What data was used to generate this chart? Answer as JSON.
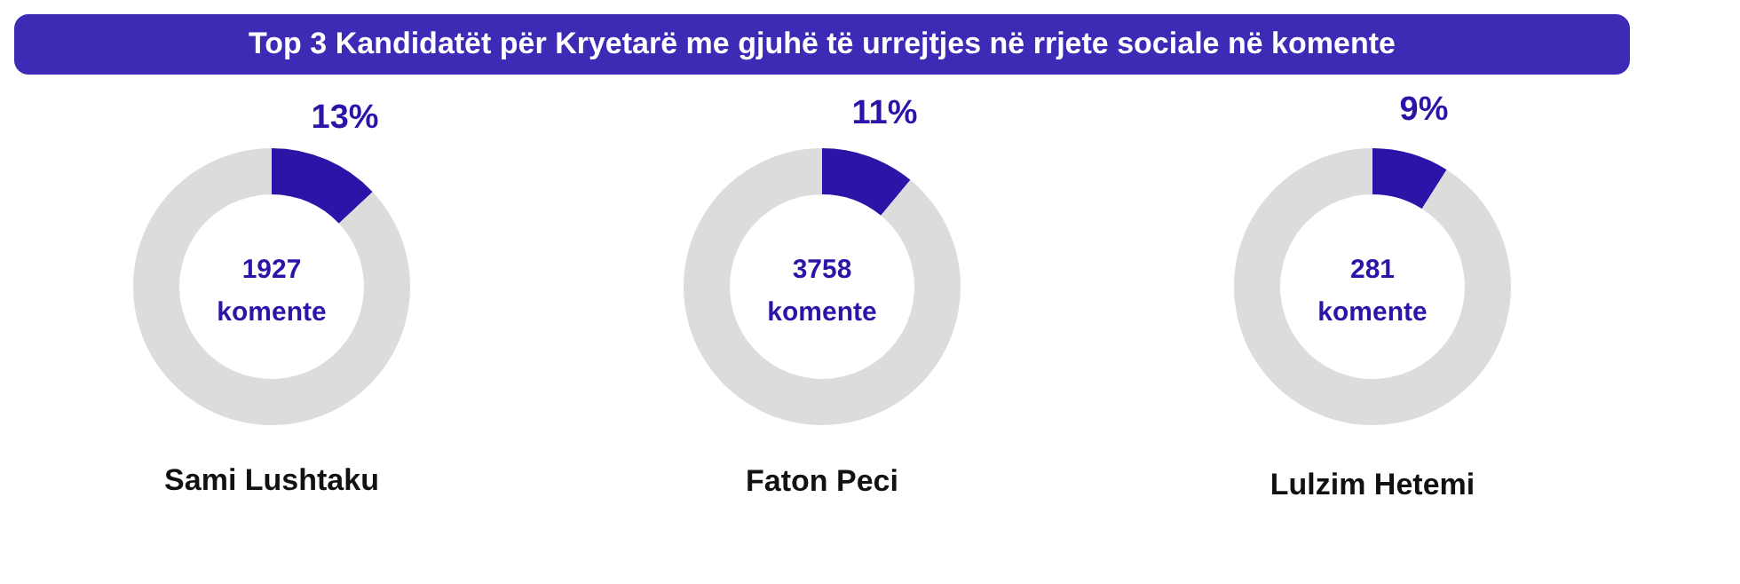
{
  "chart_data": [
    {
      "type": "donut",
      "title": "Top 3 Kandidatët për Kryetarë me gjuhë të urrejtjes në rrjete sociale në komente",
      "xlabel": "Sami Lushtaku",
      "annotations": [
        "1927 komente"
      ],
      "categories": [
        null,
        null
      ],
      "values": [
        13,
        87
      ],
      "value_labels": [
        "13%",
        null
      ],
      "colors": [
        "#2b14a8",
        "#dcdcdc"
      ]
    },
    {
      "type": "donut",
      "xlabel": "Faton Peci",
      "annotations": [
        "3758 komente"
      ],
      "categories": [
        null,
        null
      ],
      "values": [
        11,
        89
      ],
      "value_labels": [
        "11%",
        null
      ],
      "colors": [
        "#2b14a8",
        "#dcdcdc"
      ]
    },
    {
      "type": "donut",
      "xlabel": "Lulzim Hetemi",
      "annotations": [
        "281 komente"
      ],
      "categories": [
        null,
        null
      ],
      "values": [
        9,
        91
      ],
      "value_labels": [
        "9%",
        null
      ],
      "colors": [
        "#2b14a8",
        "#dcdcdc"
      ]
    }
  ]
}
